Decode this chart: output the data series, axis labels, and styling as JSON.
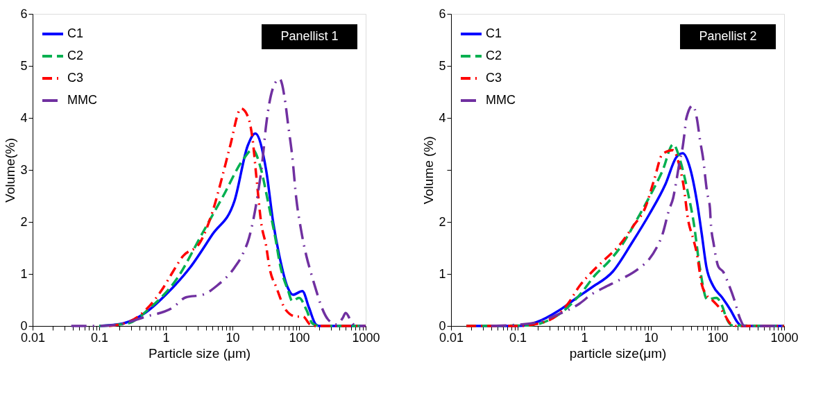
{
  "chart_data": [
    {
      "type": "line",
      "xlabel": "Particle size (μm)",
      "ylabel": "Volume(%)",
      "annotations": [
        "Panellist 1"
      ],
      "log": "x",
      "grid": false,
      "legend": "top left",
      "marker": "none",
      "xlim": [
        0.01,
        1000
      ],
      "xticks": [
        0.01,
        {
          "value": 0.02,
          "label": null
        },
        {
          "value": 0.03,
          "label": null
        },
        {
          "value": 0.04,
          "label": null
        },
        {
          "value": 0.05,
          "label": null
        },
        {
          "value": 0.06,
          "label": null
        },
        {
          "value": 0.07,
          "label": null
        },
        {
          "value": 0.08,
          "label": null
        },
        {
          "value": 0.09,
          "label": null
        },
        0.1,
        {
          "value": 0.2,
          "label": null
        },
        {
          "value": 0.3,
          "label": null
        },
        {
          "value": 0.4,
          "label": null
        },
        {
          "value": 0.5,
          "label": null
        },
        {
          "value": 0.6,
          "label": null
        },
        {
          "value": 0.7,
          "label": null
        },
        {
          "value": 0.8,
          "label": null
        },
        {
          "value": 0.9,
          "label": null
        },
        1,
        {
          "value": 2,
          "label": null
        },
        {
          "value": 3,
          "label": null
        },
        {
          "value": 4,
          "label": null
        },
        {
          "value": 5,
          "label": null
        },
        {
          "value": 6,
          "label": null
        },
        {
          "value": 7,
          "label": null
        },
        {
          "value": 8,
          "label": null
        },
        {
          "value": 9,
          "label": null
        },
        10,
        {
          "value": 20,
          "label": null
        },
        {
          "value": 30,
          "label": null
        },
        {
          "value": 40,
          "label": null
        },
        {
          "value": 50,
          "label": null
        },
        {
          "value": 60,
          "label": null
        },
        {
          "value": 70,
          "label": null
        },
        {
          "value": 80,
          "label": null
        },
        {
          "value": 90,
          "label": null
        },
        100,
        {
          "value": 200,
          "label": null
        },
        {
          "value": 300,
          "label": null
        },
        {
          "value": 400,
          "label": null
        },
        {
          "value": 500,
          "label": null
        },
        {
          "value": 600,
          "label": null
        },
        {
          "value": 700,
          "label": null
        },
        {
          "value": 800,
          "label": null
        },
        {
          "value": 900,
          "label": null
        },
        1000
      ],
      "ylim": [
        0,
        6
      ],
      "yticks": [
        0,
        1,
        2,
        3,
        4,
        5,
        6
      ],
      "series": [
        {
          "name": "C1",
          "color": "#0000ff",
          "line_style": "solid",
          "x": [
            0.1,
            0.23,
            0.5,
            1.07,
            2.3,
            5,
            10.7,
            17,
            22,
            32,
            41,
            50,
            68,
            81,
            112,
            141,
            178,
            200,
            1000
          ],
          "values": [
            0,
            0.05,
            0.26,
            0.64,
            1.12,
            1.76,
            2.4,
            3.47,
            3.7,
            3.0,
            1.98,
            1.38,
            0.73,
            0.6,
            0.67,
            0.35,
            0.03,
            0,
            0
          ]
        },
        {
          "name": "C2",
          "color": "#00b050",
          "line_style": "dashed",
          "x": [
            0.1,
            0.27,
            0.58,
            1.45,
            3.6,
            7.2,
            14.5,
            20,
            27,
            34,
            43,
            53,
            68,
            79,
            100,
            129,
            158,
            200,
            1000
          ],
          "values": [
            0,
            0.05,
            0.35,
            0.9,
            1.8,
            2.49,
            3.2,
            3.39,
            3.0,
            2.4,
            1.76,
            1.12,
            0.69,
            0.48,
            0.54,
            0.31,
            0.05,
            0,
            0
          ]
        },
        {
          "name": "C3",
          "color": "#ff0000",
          "line_style": "dashdot",
          "x": [
            0.14,
            0.29,
            0.5,
            0.91,
            1.26,
            1.8,
            3.2,
            5,
            7.2,
            9.1,
            13.5,
            17,
            20,
            23,
            27,
            32,
            36,
            46,
            63,
            91,
            115,
            145,
            170,
            1000
          ],
          "values": [
            0,
            0.09,
            0.31,
            0.73,
            1.03,
            1.34,
            1.59,
            2.19,
            2.92,
            3.43,
            4.18,
            4.03,
            3.6,
            2.83,
            1.98,
            1.54,
            1.12,
            0.73,
            0.31,
            0.18,
            0.18,
            0.03,
            0,
            0
          ]
        },
        {
          "name": "MMC",
          "color": "#7030a0",
          "line_style": "longdashdot",
          "x": [
            0.038,
            0.1,
            0.18,
            0.5,
            1.26,
            2,
            3.6,
            5.8,
            10.7,
            14.5,
            17.8,
            20.4,
            24,
            28,
            32,
            41,
            51,
            63,
            68,
            79,
            91,
            107,
            129,
            151,
            178,
            214,
            270,
            363,
            450,
            500,
            600,
            700,
            1000
          ],
          "values": [
            0,
            0,
            0.02,
            0.18,
            0.35,
            0.55,
            0.6,
            0.77,
            1.12,
            1.4,
            1.7,
            2.02,
            2.53,
            3.14,
            3.86,
            4.59,
            4.75,
            4.24,
            3.9,
            3.26,
            2.44,
            1.85,
            1.34,
            1.02,
            0.71,
            0.39,
            0.13,
            0.03,
            0.15,
            0.25,
            0.1,
            0,
            0
          ]
        }
      ]
    },
    {
      "type": "line",
      "xlabel": "particle size(μm)",
      "ylabel": "Volume (%)",
      "annotations": [
        "Panellist 2"
      ],
      "log": "x",
      "grid": false,
      "legend": "top left",
      "marker": "none",
      "xlim": [
        0.01,
        1000
      ],
      "xticks": [
        0.01,
        {
          "value": 0.02,
          "label": null
        },
        {
          "value": 0.03,
          "label": null
        },
        {
          "value": 0.04,
          "label": null
        },
        {
          "value": 0.05,
          "label": null
        },
        {
          "value": 0.06,
          "label": null
        },
        {
          "value": 0.07,
          "label": null
        },
        {
          "value": 0.08,
          "label": null
        },
        {
          "value": 0.09,
          "label": null
        },
        0.1,
        {
          "value": 0.2,
          "label": null
        },
        {
          "value": 0.3,
          "label": null
        },
        {
          "value": 0.4,
          "label": null
        },
        {
          "value": 0.5,
          "label": null
        },
        {
          "value": 0.6,
          "label": null
        },
        {
          "value": 0.7,
          "label": null
        },
        {
          "value": 0.8,
          "label": null
        },
        {
          "value": 0.9,
          "label": null
        },
        1,
        {
          "value": 2,
          "label": null
        },
        {
          "value": 3,
          "label": null
        },
        {
          "value": 4,
          "label": null
        },
        {
          "value": 5,
          "label": null
        },
        {
          "value": 6,
          "label": null
        },
        {
          "value": 7,
          "label": null
        },
        {
          "value": 8,
          "label": null
        },
        {
          "value": 9,
          "label": null
        },
        10,
        {
          "value": 20,
          "label": null
        },
        {
          "value": 30,
          "label": null
        },
        {
          "value": 40,
          "label": null
        },
        {
          "value": 50,
          "label": null
        },
        {
          "value": 60,
          "label": null
        },
        {
          "value": 70,
          "label": null
        },
        {
          "value": 80,
          "label": null
        },
        {
          "value": 90,
          "label": null
        },
        100,
        {
          "value": 200,
          "label": null
        },
        {
          "value": 300,
          "label": null
        },
        {
          "value": 400,
          "label": null
        },
        {
          "value": 500,
          "label": null
        },
        {
          "value": 600,
          "label": null
        },
        {
          "value": 700,
          "label": null
        },
        {
          "value": 800,
          "label": null
        },
        {
          "value": 900,
          "label": null
        },
        1000
      ],
      "ylim": [
        0,
        6
      ],
      "yticks": [
        0,
        1,
        2,
        {
          "value": 3,
          "label": null
        },
        4,
        5,
        6
      ],
      "series": [
        {
          "name": "C1",
          "color": "#0000ff",
          "line_style": "solid",
          "x": [
            0.017,
            0.1,
            0.19,
            0.42,
            0.79,
            1.26,
            2.7,
            5.2,
            9.5,
            16.6,
            24,
            30,
            39,
            49,
            58,
            68,
            86,
            117,
            158,
            200,
            230,
            1000
          ],
          "values": [
            0,
            0,
            0.07,
            0.3,
            0.55,
            0.73,
            1.05,
            1.6,
            2.15,
            2.73,
            3.24,
            3.32,
            3.02,
            2.4,
            1.77,
            1.14,
            0.77,
            0.55,
            0.3,
            0.07,
            0,
            0
          ]
        },
        {
          "name": "C2",
          "color": "#00b050",
          "line_style": "dashed",
          "x": [
            0.017,
            0.15,
            0.28,
            0.5,
            0.91,
            1.46,
            2.3,
            3.7,
            6,
            9.5,
            15,
            21.6,
            28,
            36,
            44,
            54,
            70,
            96,
            117,
            137,
            166,
            1000
          ],
          "values": [
            0,
            0.01,
            0.1,
            0.3,
            0.64,
            0.98,
            1.23,
            1.56,
            2.02,
            2.48,
            2.99,
            3.49,
            3.15,
            2.56,
            1.98,
            1.14,
            0.51,
            0.54,
            0.39,
            0.14,
            0.01,
            0
          ]
        },
        {
          "name": "C3",
          "color": "#ff0000",
          "line_style": "dashdot",
          "x": [
            0.017,
            0.1,
            0.26,
            0.57,
            0.85,
            1.26,
            2,
            3.2,
            5.5,
            8.2,
            11.2,
            15,
            21.6,
            27,
            31,
            36,
            44,
            49,
            58,
            68,
            86,
            122,
            158,
            200,
            1000
          ],
          "values": [
            0,
            0,
            0.08,
            0.43,
            0.77,
            1.02,
            1.27,
            1.52,
            1.93,
            2.27,
            2.81,
            3.31,
            3.38,
            3.06,
            2.69,
            2.06,
            1.64,
            1.39,
            0.8,
            0.6,
            0.48,
            0.26,
            0.04,
            0,
            0
          ]
        },
        {
          "name": "MMC",
          "color": "#7030a0",
          "line_style": "longdashdot",
          "x": [
            0.04,
            0.16,
            0.42,
            0.85,
            1.26,
            2,
            3.2,
            6.5,
            9.5,
            12,
            15,
            18.7,
            21.6,
            23.7,
            26.6,
            30,
            32,
            34,
            42.5,
            49,
            55,
            60,
            70,
            77,
            79,
            88,
            103,
            122,
            147,
            178,
            218,
            253,
            1000
          ],
          "values": [
            0,
            0.05,
            0.23,
            0.43,
            0.6,
            0.74,
            0.87,
            1.1,
            1.29,
            1.49,
            1.77,
            2.23,
            2.46,
            2.73,
            3.11,
            3.44,
            3.71,
            3.99,
            4.24,
            3.99,
            3.55,
            3.27,
            2.56,
            2.27,
            2.02,
            1.56,
            1.14,
            1.04,
            0.8,
            0.51,
            0.14,
            0,
            0
          ]
        }
      ]
    }
  ]
}
